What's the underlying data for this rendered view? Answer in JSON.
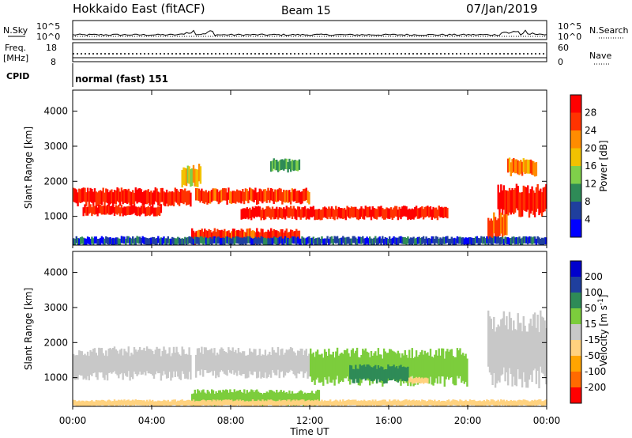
{
  "header": {
    "station": "Hokkaido East (fitACF)",
    "beam": "Beam 15",
    "date": "07/Jan/2019"
  },
  "strip_labels": {
    "nsky": "N.Sky",
    "nsearch": "N.Search",
    "freq_line1": "Freq.",
    "freq_line2": "[MHz]",
    "nave": "Nave",
    "cpid": "CPID",
    "cpid_value": "normal (fast) 151"
  },
  "strip_ticks": {
    "noise_left": [
      "10^5",
      "10^0"
    ],
    "noise_right": [
      "10^5",
      "10^0"
    ],
    "freq_left": [
      "18",
      "8"
    ],
    "nave_right": [
      "60",
      "0"
    ]
  },
  "colors": {
    "power": [
      "#0000ff",
      "#1f3f9e",
      "#2e8b57",
      "#7fd04a",
      "#f2c200",
      "#ff8c00",
      "#ff3300",
      "#ff0000"
    ],
    "velocity": [
      "#ff0000",
      "#ff6a00",
      "#ffa500",
      "#ffd27f",
      "#c8c8c8",
      "#7ccd3c",
      "#2e8b57",
      "#1f3f9e",
      "#0000cd"
    ]
  },
  "chart_data": [
    {
      "type": "heatmap",
      "name": "power",
      "ylabel": "Slant Range [km]",
      "ylim": [
        180,
        4600
      ],
      "yticks": [
        "1000",
        "2000",
        "3000",
        "4000"
      ],
      "colorbar": {
        "label": "Power [dB]",
        "ticks": [
          "4",
          "8",
          "12",
          "16",
          "20",
          "24",
          "28"
        ],
        "range": [
          0,
          32
        ]
      },
      "bands": [
        {
          "t0": 0.0,
          "t1": 6.0,
          "r0": 1350,
          "r1": 1750,
          "level": 28
        },
        {
          "t0": 0.5,
          "t1": 4.5,
          "r0": 1050,
          "r1": 1300,
          "level": 28
        },
        {
          "t0": 6.2,
          "t1": 12.0,
          "r0": 1400,
          "r1": 1750,
          "level": 26
        },
        {
          "t0": 8.5,
          "t1": 19.0,
          "r0": 950,
          "r1": 1250,
          "level": 28
        },
        {
          "t0": 6.0,
          "t1": 11.5,
          "r0": 250,
          "r1": 600,
          "level": 27
        },
        {
          "t0": 21.5,
          "t1": 24.0,
          "r0": 1100,
          "r1": 1800,
          "level": 29
        },
        {
          "t0": 21.0,
          "t1": 22.0,
          "r0": 400,
          "r1": 1000,
          "level": 24
        },
        {
          "t0": 0.0,
          "t1": 24.0,
          "r0": 200,
          "r1": 400,
          "level": 6
        },
        {
          "t0": 5.5,
          "t1": 6.5,
          "r0": 1900,
          "r1": 2400,
          "level": 18
        },
        {
          "t0": 10.0,
          "t1": 11.5,
          "r0": 2300,
          "r1": 2600,
          "level": 12
        },
        {
          "t0": 22.0,
          "t1": 23.5,
          "r0": 2200,
          "r1": 2600,
          "level": 22
        }
      ]
    },
    {
      "type": "heatmap",
      "name": "velocity",
      "ylabel": "Slant Range [km]",
      "xlabel": "Time UT",
      "xlim": [
        0,
        24
      ],
      "xticks": [
        "00:00",
        "04:00",
        "08:00",
        "12:00",
        "16:00",
        "20:00",
        "00:00"
      ],
      "ylim": [
        180,
        4600
      ],
      "yticks": [
        "1000",
        "2000",
        "3000",
        "4000"
      ],
      "colorbar": {
        "label": "Velocity [m s",
        "label_superscript": "-1",
        "label_close": "]",
        "ticks": [
          "200",
          "100",
          "50",
          "15",
          "-15",
          "-50",
          "-100",
          "-200"
        ]
      },
      "bands": [
        {
          "t0": 0.0,
          "t1": 6.0,
          "r0": 1050,
          "r1": 1750,
          "level": 0
        },
        {
          "t0": 6.2,
          "t1": 12.0,
          "r0": 1100,
          "r1": 1750,
          "level": 0
        },
        {
          "t0": 6.0,
          "t1": 12.5,
          "r0": 250,
          "r1": 600,
          "level": 40
        },
        {
          "t0": 12.0,
          "t1": 20.0,
          "r0": 900,
          "r1": 1700,
          "level": 45
        },
        {
          "t0": 14.0,
          "t1": 17.0,
          "r0": 900,
          "r1": 1300,
          "level": 70
        },
        {
          "t0": 0.0,
          "t1": 24.0,
          "r0": 200,
          "r1": 350,
          "level": -30
        },
        {
          "t0": 21.0,
          "t1": 24.0,
          "r0": 1000,
          "r1": 2600,
          "level": 0
        },
        {
          "t0": 17.0,
          "t1": 18.0,
          "r0": 850,
          "r1": 1000,
          "level": -40
        }
      ]
    }
  ]
}
